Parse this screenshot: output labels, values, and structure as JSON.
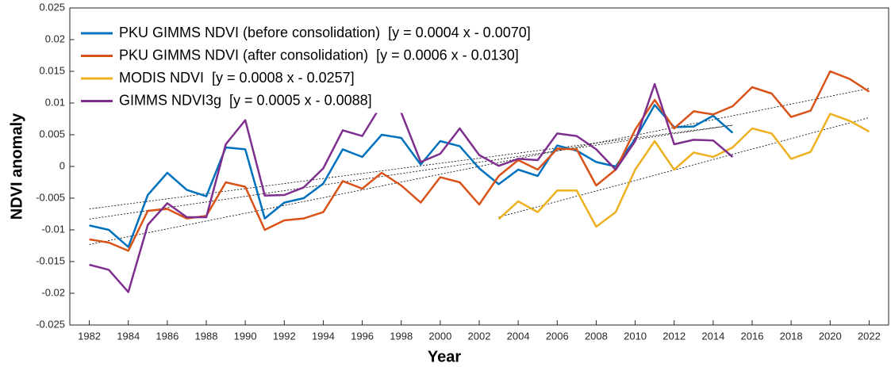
{
  "chart_data": {
    "type": "line",
    "xlabel": "Year",
    "ylabel": "NDVI anomaly",
    "x": [
      1982,
      1983,
      1984,
      1985,
      1986,
      1987,
      1988,
      1989,
      1990,
      1991,
      1992,
      1993,
      1994,
      1995,
      1996,
      1997,
      1998,
      1999,
      2000,
      2001,
      2002,
      2003,
      2004,
      2005,
      2006,
      2007,
      2008,
      2009,
      2010,
      2011,
      2012,
      2013,
      2014,
      2015,
      2016,
      2017,
      2018,
      2019,
      2020,
      2021,
      2022
    ],
    "series": [
      {
        "name": "PKU GIMMS NDVI (before consolidation)  [y = 0.0004 x - 0.0070]",
        "color": "#0072BD",
        "values": [
          -0.0093,
          -0.01,
          -0.0127,
          -0.0045,
          -0.001,
          -0.0037,
          -0.0047,
          0.003,
          0.0027,
          -0.0082,
          -0.0057,
          -0.005,
          -0.0027,
          0.0027,
          0.0015,
          0.005,
          0.0045,
          0.0003,
          0.004,
          0.0032,
          -0.0003,
          -0.0028,
          -0.0005,
          -0.0015,
          0.0033,
          0.0025,
          0.0007,
          0.0,
          0.0043,
          0.0097,
          0.0062,
          0.0063,
          0.008,
          0.0053,
          null,
          null,
          null,
          null,
          null,
          null,
          null
        ]
      },
      {
        "name": "PKU GIMMS NDVI (after consolidation)  [y = 0.0006 x - 0.0130]",
        "color": "#D95319",
        "values": [
          -0.0115,
          -0.012,
          -0.0133,
          -0.007,
          -0.0067,
          -0.0082,
          -0.0078,
          -0.0025,
          -0.0032,
          -0.01,
          -0.0085,
          -0.0082,
          -0.0072,
          -0.0023,
          -0.0035,
          -0.001,
          -0.003,
          -0.0057,
          -0.0017,
          -0.0025,
          -0.006,
          -0.0015,
          0.001,
          -0.0005,
          0.0028,
          0.0027,
          -0.003,
          -0.0005,
          0.0058,
          0.0105,
          0.006,
          0.0087,
          0.0082,
          0.0095,
          0.0125,
          0.0115,
          0.0078,
          0.0088,
          0.015,
          0.0138,
          0.0118
        ]
      },
      {
        "name": "MODIS NDVI  [y = 0.0008 x - 0.0257]",
        "color": "#EDB120",
        "values": [
          null,
          null,
          null,
          null,
          null,
          null,
          null,
          null,
          null,
          null,
          null,
          null,
          null,
          null,
          null,
          null,
          null,
          null,
          null,
          null,
          null,
          -0.0083,
          -0.0055,
          -0.0072,
          -0.0038,
          -0.0038,
          -0.0095,
          -0.0072,
          -0.0005,
          0.004,
          -0.0005,
          0.0022,
          0.0015,
          0.003,
          0.006,
          0.0052,
          0.0012,
          0.0023,
          0.0083,
          0.0072,
          0.0055
        ]
      },
      {
        "name": "GIMMS NDVI3g  [y = 0.0005 x - 0.0088]",
        "color": "#7E2F8E",
        "values": [
          -0.0155,
          -0.0163,
          -0.0198,
          -0.0092,
          -0.0058,
          -0.008,
          -0.008,
          0.0035,
          0.0073,
          -0.0046,
          -0.0045,
          -0.0033,
          -0.0003,
          0.0057,
          0.0048,
          0.0098,
          0.0085,
          0.0007,
          0.002,
          0.006,
          0.0018,
          0.0001,
          0.0012,
          0.001,
          0.0052,
          0.0048,
          0.0027,
          -0.0005,
          0.004,
          0.013,
          0.0035,
          0.0042,
          0.0041,
          0.0015,
          null,
          null,
          null,
          null,
          null,
          null,
          null
        ]
      }
    ],
    "trend_lines": [
      {
        "color": "#000000",
        "x": [
          1982,
          2015
        ],
        "values": [
          -0.0067,
          0.0065
        ]
      },
      {
        "color": "#000000",
        "x": [
          1982,
          2022
        ],
        "values": [
          -0.0123,
          0.0123
        ]
      },
      {
        "color": "#000000",
        "x": [
          2003,
          2022
        ],
        "values": [
          -0.008,
          0.0077
        ]
      },
      {
        "color": "#000000",
        "x": [
          1982,
          2015
        ],
        "values": [
          -0.0083,
          0.0065
        ]
      }
    ],
    "xlim": [
      1981,
      2023
    ],
    "ylim": [
      -0.025,
      0.025
    ],
    "xticks": [
      1982,
      1984,
      1986,
      1988,
      1990,
      1992,
      1994,
      1996,
      1998,
      2000,
      2002,
      2004,
      2006,
      2008,
      2010,
      2012,
      2014,
      2016,
      2018,
      2020,
      2022
    ],
    "yticks": [
      -0.025,
      -0.02,
      -0.015,
      -0.01,
      -0.005,
      0,
      0.005,
      0.01,
      0.015,
      0.02,
      0.025
    ],
    "legend": "upper-left"
  }
}
